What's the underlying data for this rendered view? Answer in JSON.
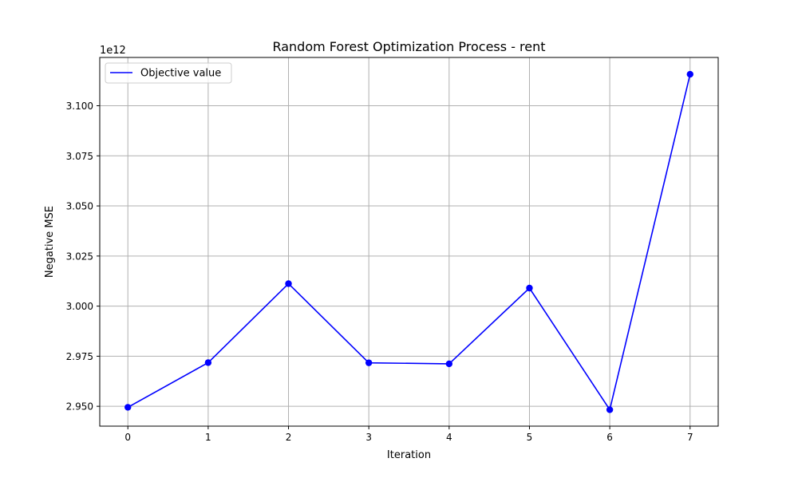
{
  "chart_data": {
    "type": "line",
    "title": "Random Forest Optimization Process - rent",
    "xlabel": "Iteration",
    "ylabel": "Negative MSE",
    "y_offset_label": "1e12",
    "x": [
      0,
      1,
      2,
      3,
      4,
      5,
      6,
      7
    ],
    "x_ticks": [
      "0",
      "1",
      "2",
      "3",
      "4",
      "5",
      "6",
      "7"
    ],
    "y_ticks": [
      "2.950",
      "2.975",
      "3.000",
      "3.025",
      "3.050",
      "3.075",
      "3.100"
    ],
    "y_tick_values": [
      2.95,
      2.975,
      3.0,
      3.025,
      3.05,
      3.075,
      3.1
    ],
    "series": [
      {
        "name": "Objective value",
        "color": "#0000ff",
        "marker": "circle",
        "values": [
          2.9495,
          2.9718,
          3.0112,
          2.9717,
          2.9712,
          3.009,
          2.9483,
          3.1157
        ]
      }
    ],
    "xlim": [
      -0.35,
      7.35
    ],
    "ylim": [
      2.9401,
      3.1241
    ],
    "grid": true,
    "legend_position": "top-left"
  }
}
